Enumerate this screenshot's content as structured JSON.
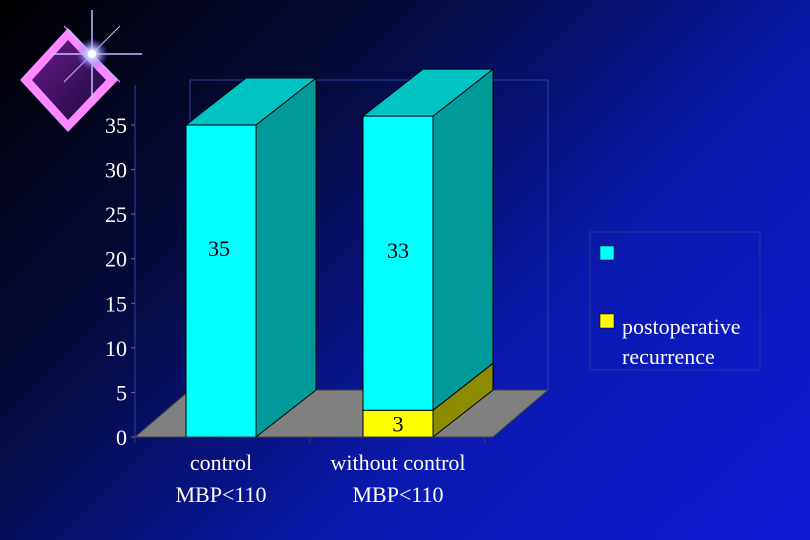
{
  "chart_data": {
    "type": "bar",
    "stacked": true,
    "three_d": true,
    "categories": [
      [
        "control",
        "MBP<110"
      ],
      [
        "without control",
        "MBP<110"
      ]
    ],
    "series": [
      {
        "name": "postoperative recurrence",
        "legend_lines": [
          "postoperative",
          "recurrence"
        ],
        "values": [
          0,
          3
        ],
        "color": "#ffff00",
        "label_values": [
          null,
          "3"
        ]
      },
      {
        "name": "",
        "legend_lines": [],
        "values": [
          35,
          33
        ],
        "color": "#00ffff",
        "label_values": [
          "35",
          "33"
        ]
      }
    ],
    "legend_order": [
      1,
      0
    ],
    "ylim": [
      0,
      35
    ],
    "yticks": [
      "0",
      "5",
      "10",
      "15",
      "20",
      "25",
      "30",
      "35"
    ],
    "ytick_values": [
      0,
      5,
      10,
      15,
      20,
      25,
      30,
      35
    ],
    "grid": false,
    "legend_position": "right",
    "title": "",
    "xlabel": "",
    "ylabel": ""
  },
  "colors": {
    "cyan_front": "#00ffff",
    "cyan_side": "#009a9a",
    "cyan_top": "#00c4c4",
    "yellow_front": "#ffff00",
    "yellow_side": "#8c8c00",
    "floor": "#808080",
    "decoration": "star-diamond-icon"
  }
}
